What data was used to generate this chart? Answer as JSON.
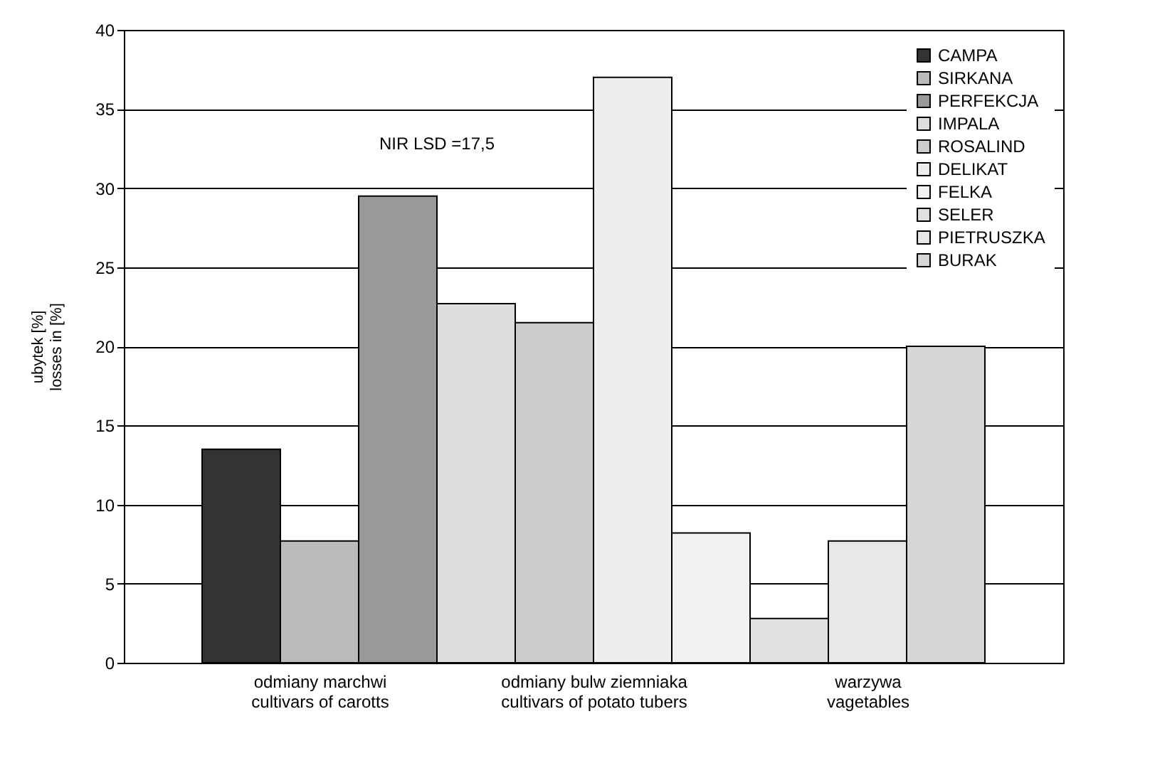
{
  "chart_data": {
    "type": "bar",
    "ylabel": "ubytek [%]\nlosses in [%]",
    "categories": [
      "odmiany marchwi\ncultivars of carotts",
      "odmiany bulw ziemniaka\ncultivars of potato tubers",
      "warzywa\nvagetables"
    ],
    "series": [
      {
        "name": "CAMPA",
        "color": "#333333",
        "values": [
          13.5,
          null,
          null
        ]
      },
      {
        "name": "SIRKANA",
        "color": "#bbbbbb",
        "values": [
          7.7,
          null,
          null
        ]
      },
      {
        "name": "PERFEKCJA",
        "color": "#999999",
        "values": [
          29.5,
          null,
          null
        ]
      },
      {
        "name": "IMPALA",
        "color": "#dddddd",
        "values": [
          null,
          22.7,
          null
        ]
      },
      {
        "name": "ROSALIND",
        "color": "#cccccc",
        "values": [
          null,
          21.5,
          null
        ]
      },
      {
        "name": "DELIKAT",
        "color": "#eeeeee",
        "values": [
          null,
          37,
          null
        ]
      },
      {
        "name": "FELKA",
        "color": "#f2f2f2",
        "values": [
          null,
          8.2,
          null
        ]
      },
      {
        "name": "SELER",
        "color": "#e0e0e0",
        "values": [
          null,
          null,
          2.8
        ]
      },
      {
        "name": "PIETRUSZKA",
        "color": "#e8e8e8",
        "values": [
          null,
          null,
          7.7
        ]
      },
      {
        "name": "BURAK",
        "color": "#d6d6d6",
        "values": [
          null,
          null,
          20
        ]
      }
    ],
    "ylim": [
      0,
      40
    ],
    "yticks": [
      0,
      5,
      10,
      15,
      20,
      25,
      30,
      35,
      40
    ],
    "grid": "y",
    "legend": "top right",
    "annotations": [
      "NIR LSD =17,5"
    ]
  }
}
